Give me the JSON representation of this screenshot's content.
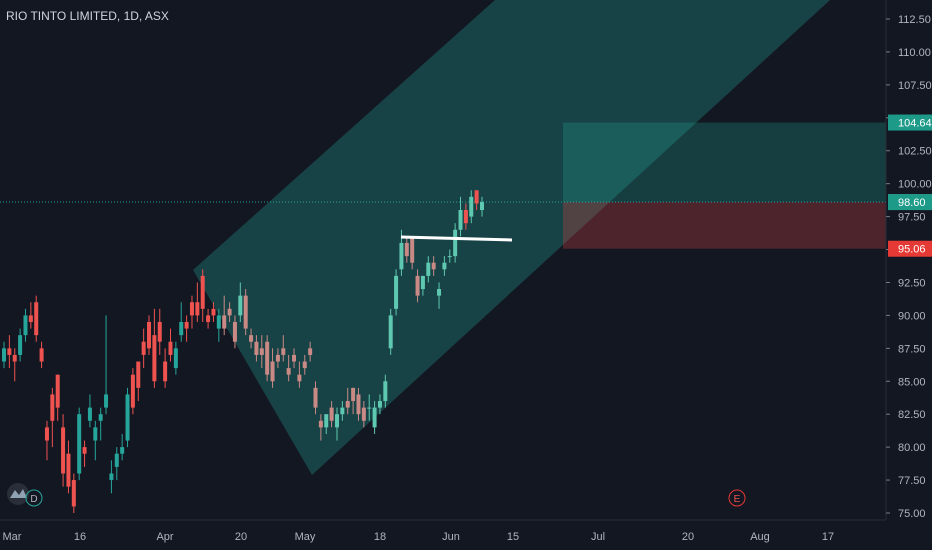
{
  "header": {
    "title": "RIO TINTO LIMITED, 1D, ASX"
  },
  "icons": {
    "logo": "tradingview-logo-icon",
    "dividend": "D",
    "earnings": "E"
  },
  "colors": {
    "background": "#131722",
    "up": "#26a69a",
    "down": "#ef5350",
    "channel": "#1e7a74",
    "target": "#20a38f",
    "stop": "#c94040",
    "text": "#b2b5be"
  },
  "price_labels": {
    "last": "98.61",
    "entry": "98.60",
    "target": "104.64",
    "stop": "95.06"
  },
  "chart_data": {
    "type": "candlestick",
    "title": "RIO TINTO LIMITED, 1D, ASX",
    "y_ticks": [
      "75.00",
      "77.50",
      "80.00",
      "82.50",
      "85.00",
      "87.50",
      "90.00",
      "92.50",
      "95.00",
      "97.50",
      "100.00",
      "102.50",
      "105.00",
      "107.50",
      "110.00",
      "112.50"
    ],
    "x_ticks": [
      "Mar",
      "16",
      "Apr",
      "20",
      "May",
      "18",
      "Jun",
      "15",
      "Jul",
      "20",
      "Aug",
      "17"
    ],
    "ylim": [
      75.0,
      112.5
    ],
    "last_price": 98.61,
    "position": {
      "entry": 98.6,
      "target": 104.64,
      "stop": 95.06
    },
    "candles": [
      [
        86.5,
        88.0,
        86.0,
        87.5
      ],
      [
        87.5,
        88.5,
        86.0,
        87.0
      ],
      [
        87.0,
        87.5,
        85.0,
        86.5
      ],
      [
        87.0,
        89.0,
        86.5,
        88.5
      ],
      [
        88.5,
        90.5,
        88.0,
        90.0
      ],
      [
        90.0,
        91.0,
        89.0,
        89.5
      ],
      [
        91.0,
        91.5,
        88.0,
        88.5
      ],
      [
        87.5,
        88.0,
        86.0,
        86.5
      ],
      [
        81.5,
        82.0,
        79.0,
        80.5
      ],
      [
        84.0,
        84.5,
        80.0,
        82.0
      ],
      [
        85.5,
        85.5,
        82.0,
        83.0
      ],
      [
        81.5,
        82.5,
        77.0,
        78.0
      ],
      [
        79.5,
        80.5,
        76.5,
        77.0
      ],
      [
        77.5,
        78.0,
        75.0,
        75.5
      ],
      [
        78.0,
        83.0,
        77.5,
        82.5
      ],
      [
        80.0,
        80.5,
        78.5,
        79.5
      ],
      [
        82.0,
        84.0,
        81.5,
        83.0
      ],
      [
        80.5,
        82.0,
        79.0,
        81.5
      ],
      [
        82.0,
        83.0,
        80.5,
        82.5
      ],
      [
        83.0,
        90.0,
        82.5,
        84.0
      ],
      [
        77.5,
        79.0,
        76.5,
        78.0
      ],
      [
        78.5,
        80.0,
        77.5,
        79.5
      ],
      [
        79.5,
        81.0,
        79.0,
        80.0
      ],
      [
        80.5,
        84.5,
        80.0,
        84.0
      ],
      [
        85.5,
        86.0,
        82.5,
        83.0
      ],
      [
        86.5,
        86.5,
        83.5,
        84.5
      ],
      [
        88.0,
        89.0,
        86.0,
        87.0
      ],
      [
        89.5,
        90.0,
        87.0,
        87.5
      ],
      [
        88.5,
        90.5,
        84.5,
        85.0
      ],
      [
        89.5,
        90.5,
        87.0,
        88.0
      ],
      [
        86.5,
        87.5,
        84.5,
        85.0
      ],
      [
        88.0,
        89.0,
        86.5,
        87.0
      ],
      [
        86.0,
        88.0,
        85.5,
        87.5
      ],
      [
        88.5,
        91.0,
        88.0,
        89.5
      ],
      [
        89.5,
        90.0,
        88.0,
        89.0
      ],
      [
        91.0,
        91.5,
        89.0,
        90.0
      ],
      [
        91.0,
        92.5,
        89.5,
        90.0
      ],
      [
        93.0,
        93.5,
        89.5,
        90.5
      ],
      [
        90.0,
        90.5,
        89.0,
        89.5
      ],
      [
        90.5,
        91.0,
        89.5,
        90.0
      ],
      [
        89.0,
        90.5,
        88.0,
        90.0
      ],
      [
        90.0,
        91.5,
        88.5,
        89.0
      ],
      [
        90.5,
        91.0,
        89.5,
        90.0
      ],
      [
        89.5,
        90.0,
        87.5,
        88.0
      ],
      [
        90.0,
        92.5,
        89.5,
        91.5
      ],
      [
        91.5,
        92.0,
        88.5,
        89.0
      ],
      [
        88.5,
        89.0,
        87.5,
        88.0
      ],
      [
        88.0,
        88.5,
        86.5,
        87.0
      ],
      [
        87.5,
        88.5,
        86.0,
        87.0
      ],
      [
        88.0,
        88.5,
        85.0,
        85.5
      ],
      [
        86.5,
        87.5,
        84.5,
        85.0
      ],
      [
        87.0,
        87.5,
        86.0,
        86.5
      ],
      [
        87.5,
        88.5,
        86.5,
        87.0
      ],
      [
        86.0,
        87.0,
        85.0,
        85.5
      ],
      [
        87.0,
        87.5,
        86.0,
        86.5
      ],
      [
        85.5,
        86.5,
        84.5,
        85.0
      ],
      [
        86.5,
        87.0,
        85.5,
        86.0
      ],
      [
        87.5,
        88.0,
        86.5,
        87.0
      ],
      [
        84.5,
        85.0,
        82.5,
        83.0
      ],
      [
        82.0,
        82.5,
        80.5,
        81.5
      ],
      [
        81.5,
        82.5,
        81.0,
        82.5
      ],
      [
        83.0,
        83.5,
        81.5,
        82.0
      ],
      [
        81.5,
        83.0,
        80.5,
        82.5
      ],
      [
        82.5,
        83.5,
        82.0,
        83.0
      ],
      [
        83.5,
        84.5,
        82.5,
        83.0
      ],
      [
        84.5,
        84.5,
        82.5,
        83.5
      ],
      [
        84.0,
        84.5,
        82.0,
        82.5
      ],
      [
        83.0,
        83.5,
        81.5,
        82.0
      ],
      [
        83.0,
        84.0,
        82.0,
        83.0
      ],
      [
        81.5,
        83.5,
        81.0,
        83.0
      ],
      [
        83.0,
        84.0,
        82.5,
        83.5
      ],
      [
        83.5,
        85.5,
        83.0,
        85.0
      ],
      [
        87.5,
        90.5,
        87.0,
        90.0
      ],
      [
        90.5,
        93.5,
        90.0,
        93.0
      ],
      [
        93.5,
        96.5,
        93.0,
        95.5
      ],
      [
        95.5,
        96.0,
        94.0,
        94.5
      ],
      [
        96.0,
        96.0,
        93.5,
        94.0
      ],
      [
        93.0,
        93.5,
        91.0,
        91.5
      ],
      [
        92.0,
        93.0,
        91.5,
        93.0
      ],
      [
        93.0,
        94.5,
        92.5,
        94.0
      ],
      [
        94.0,
        94.5,
        93.0,
        93.5
      ],
      [
        91.5,
        92.5,
        90.5,
        92.0
      ],
      [
        93.5,
        94.5,
        93.0,
        94.0
      ],
      [
        94.5,
        95.0,
        94.0,
        94.5
      ],
      [
        94.5,
        97.0,
        94.0,
        96.5
      ],
      [
        96.5,
        99.0,
        96.0,
        98.0
      ],
      [
        98.0,
        98.5,
        96.5,
        97.0
      ],
      [
        97.5,
        99.5,
        97.0,
        99.0
      ],
      [
        99.5,
        99.5,
        98.0,
        98.5
      ],
      [
        98.0,
        99.0,
        97.5,
        98.6
      ]
    ]
  }
}
